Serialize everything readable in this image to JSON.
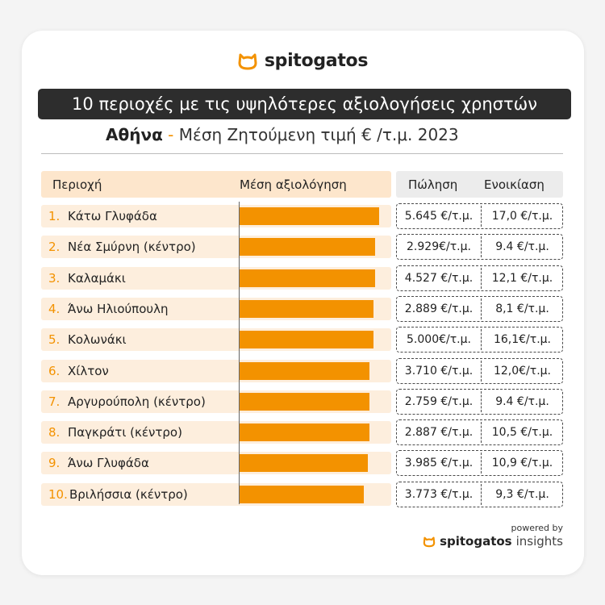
{
  "brand": {
    "name": "spitogatos",
    "accent": "#f39200"
  },
  "title": "10 περιοχές με τις υψηλότερες αξιολογήσεις χρηστών",
  "subtitle": {
    "city": "Αθήνα",
    "dash": " - ",
    "rest": "Μέση Ζητούμενη τιμή € /τ.μ. 2023"
  },
  "headers": {
    "area": "Περιοχή",
    "rating": "Μέση αξιολόγηση",
    "sale": "Πώληση",
    "rent": "Ενοικίαση"
  },
  "chart_data": {
    "type": "bar",
    "orientation": "horizontal",
    "title": "10 περιοχές με τις υψηλότερες αξιολογήσεις χρηστών",
    "categories": [
      "Κάτω Γλυφάδα",
      "Νέα Σμύρνη (κέντρο)",
      "Καλαμάκι",
      "Άνω Ηλιούπουλη",
      "Κολωνάκι",
      "Χίλτον",
      "Αργυρούπολη (κέντρο)",
      "Παγκράτι (κέντρο)",
      "Άνω Γλυφάδα",
      "Βριλήσσια (κέντρο)"
    ],
    "values": [
      0.98,
      0.95,
      0.95,
      0.94,
      0.94,
      0.91,
      0.91,
      0.91,
      0.9,
      0.87
    ],
    "value_unit": "relative rating (fraction of column width)",
    "grid": false,
    "bar_color": "#f39200"
  },
  "rows": [
    {
      "rank": "1.",
      "name": "Κάτω Γλυφάδα",
      "sale": "5.645 €/τ.μ.",
      "rent": "17,0 €/τ.μ."
    },
    {
      "rank": "2.",
      "name": "Νέα Σμύρνη (κέντρο)",
      "sale": "2.929€/τ.μ.",
      "rent": "9.4 €/τ.μ."
    },
    {
      "rank": "3.",
      "name": "Καλαμάκι",
      "sale": "4.527 €/τ.μ.",
      "rent": "12,1 €/τ.μ."
    },
    {
      "rank": "4.",
      "name": "Άνω Ηλιούπουλη",
      "sale": "2.889 €/τ.μ.",
      "rent": "8,1 €/τ.μ."
    },
    {
      "rank": "5.",
      "name": "Κολωνάκι",
      "sale": "5.000€/τ.μ.",
      "rent": "16,1€/τ.μ."
    },
    {
      "rank": "6.",
      "name": "Χίλτον",
      "sale": "3.710 €/τ.μ.",
      "rent": "12,0€/τ.μ."
    },
    {
      "rank": "7.",
      "name": "Αργυρούπολη (κέντρο)",
      "sale": "2.759 €/τ.μ.",
      "rent": "9.4 €/τ.μ."
    },
    {
      "rank": "8.",
      "name": "Παγκράτι (κέντρο)",
      "sale": "2.887 €/τ.μ.",
      "rent": "10,5 €/τ.μ."
    },
    {
      "rank": "9.",
      "name": "Άνω Γλυφάδα",
      "sale": "3.985 €/τ.μ.",
      "rent": "10,9 €/τ.μ."
    },
    {
      "rank": "10.",
      "name": "Βριλήσσια (κέντρο)",
      "sale": "3.773 €/τ.μ.",
      "rent": "9,3 €/τ.μ."
    }
  ],
  "footer": {
    "powered": "powered by",
    "brand_bold": "spitogatos",
    "brand_light": "insights"
  }
}
